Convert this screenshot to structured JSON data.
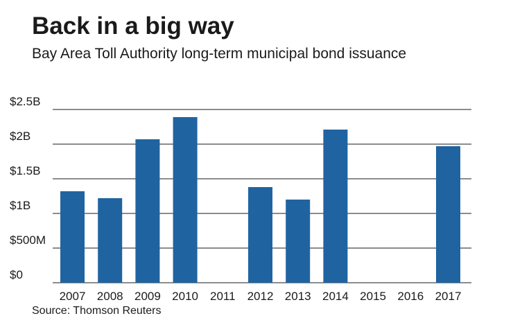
{
  "chart_data": {
    "type": "bar",
    "title": "Back in a big way",
    "subtitle": "Bay Area Toll Authority long-term municipal bond issuance",
    "categories": [
      "2007",
      "2008",
      "2009",
      "2010",
      "2011",
      "2012",
      "2013",
      "2014",
      "2015",
      "2016",
      "2017"
    ],
    "values": [
      1.32,
      1.22,
      2.07,
      2.39,
      0,
      1.38,
      1.2,
      2.21,
      0,
      0,
      1.97
    ],
    "value_unit": "billions of dollars",
    "ylim": [
      0,
      2.5
    ],
    "yticks": [
      0,
      0.5,
      1,
      1.5,
      2,
      2.5
    ],
    "ytick_labels": [
      "$0",
      "$500M",
      "$1B",
      "$1.5B",
      "$2B",
      "$2.5B"
    ],
    "xlabel": "",
    "ylabel": "",
    "grid": true,
    "bar_color": "#1f64a0",
    "grid_color": "#1a1a1a"
  },
  "source": "Source: Thomson Reuters"
}
